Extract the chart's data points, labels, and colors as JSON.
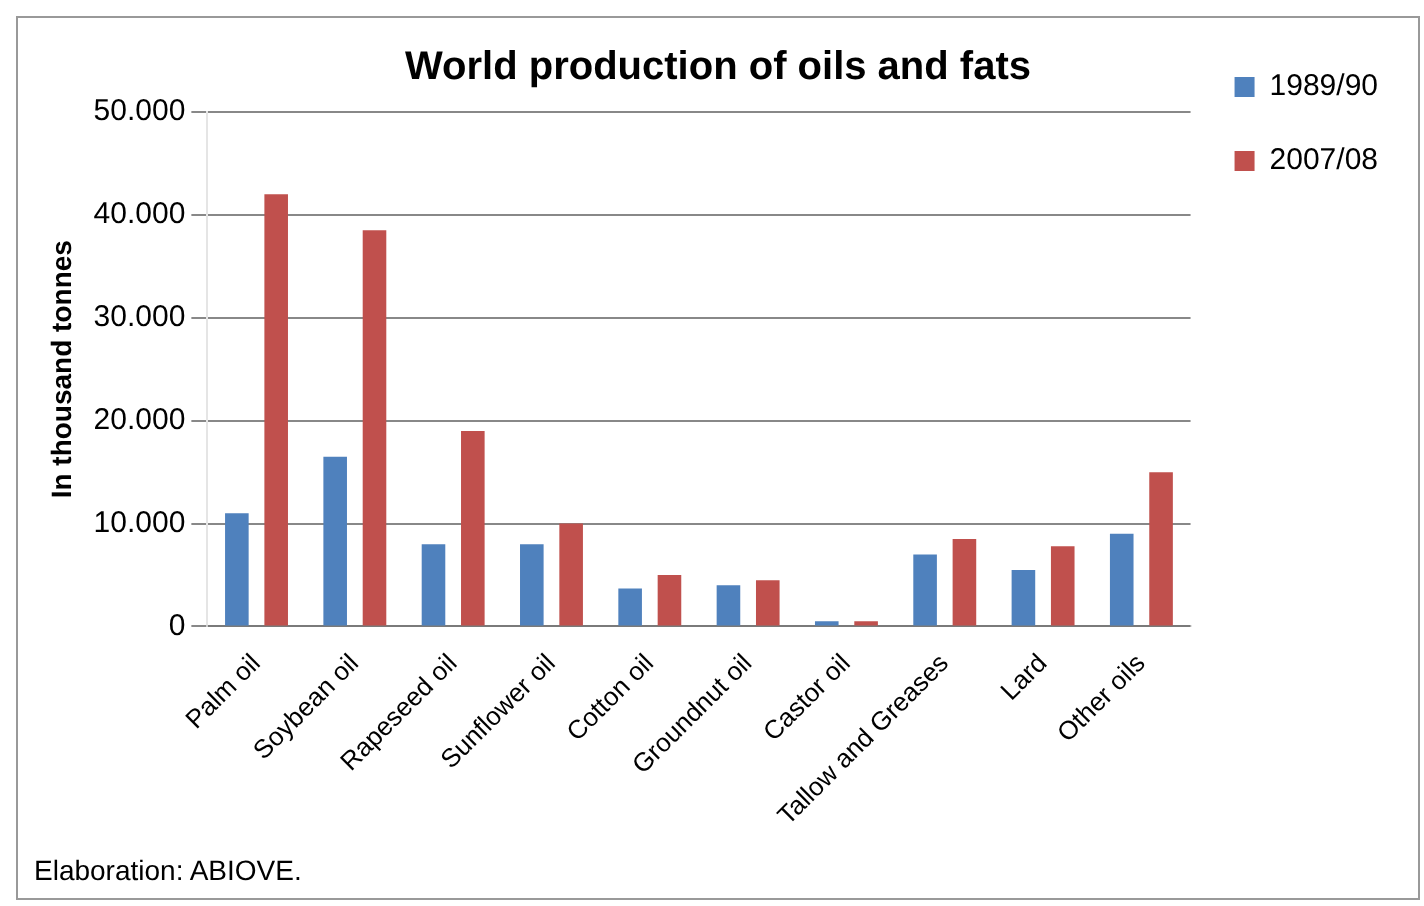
{
  "chart_data": {
    "type": "bar",
    "title": "World production of oils and fats",
    "ylabel": "In thousand tonnes",
    "categories": [
      "Palm oil",
      "Soybean oil",
      "Rapeseed oil",
      "Sunflower oil",
      "Cotton oil",
      "Groundnut oil",
      "Castor oil",
      "Tallow and Greases",
      "Lard",
      "Other oils"
    ],
    "series": [
      {
        "name": "1989/90",
        "color": "#4f81bd",
        "values": [
          11000,
          16500,
          8000,
          8000,
          3700,
          4000,
          500,
          7000,
          5500,
          9000
        ]
      },
      {
        "name": "2007/08",
        "color": "#c0504d",
        "values": [
          42000,
          38500,
          19000,
          10000,
          5000,
          4500,
          500,
          8500,
          7800,
          15000
        ]
      }
    ],
    "ylim": [
      0,
      50000
    ],
    "yticks": [
      0,
      {
        "value": 10000,
        "label": "10.000"
      },
      {
        "value": 20000,
        "label": "20.000"
      },
      {
        "value": 30000,
        "label": "30.000"
      },
      {
        "value": 40000,
        "label": "40.000"
      },
      {
        "value": 50000,
        "label": "50.000"
      }
    ],
    "grid": "y",
    "legend": "top right",
    "annotations": [
      "Elaboration:  ABIOVE."
    ]
  }
}
